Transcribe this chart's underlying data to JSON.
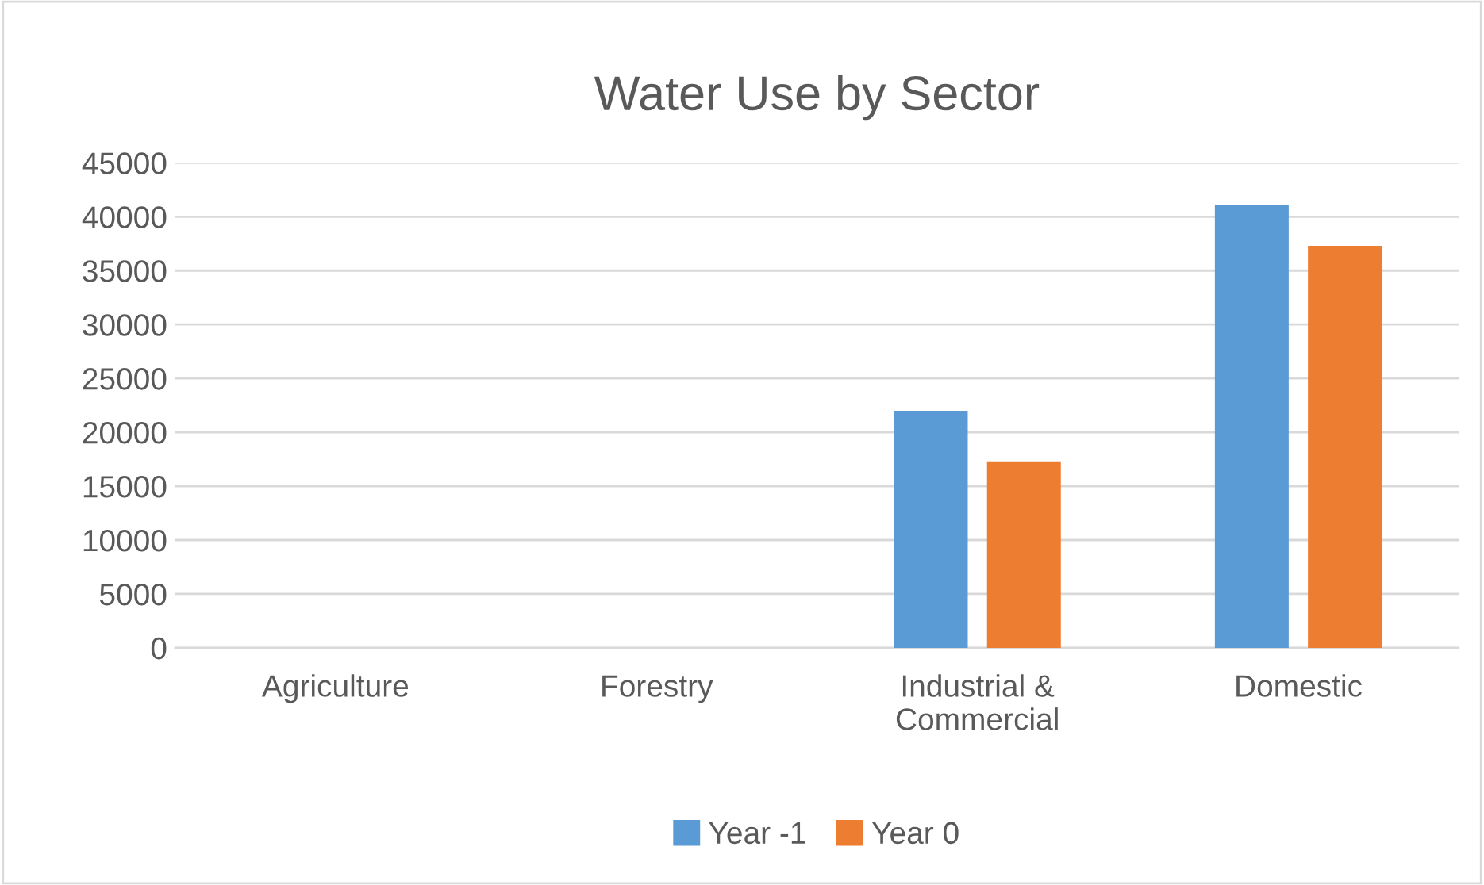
{
  "chart_data": {
    "type": "bar",
    "title": "Water Use by Sector",
    "categories": [
      "Agriculture",
      "Forestry",
      "Industrial &\nCommercial",
      "Domestic"
    ],
    "series": [
      {
        "name": "Year -1",
        "color": "#5b9bd5",
        "values": [
          0,
          0,
          22000,
          41100
        ]
      },
      {
        "name": "Year 0",
        "color": "#ed7d31",
        "values": [
          0,
          0,
          17300,
          37300
        ]
      }
    ],
    "ylim": [
      0,
      45000
    ],
    "yticks": [
      0,
      5000,
      10000,
      15000,
      20000,
      25000,
      30000,
      35000,
      40000,
      45000
    ],
    "grid": "y",
    "legend": "bottom"
  }
}
